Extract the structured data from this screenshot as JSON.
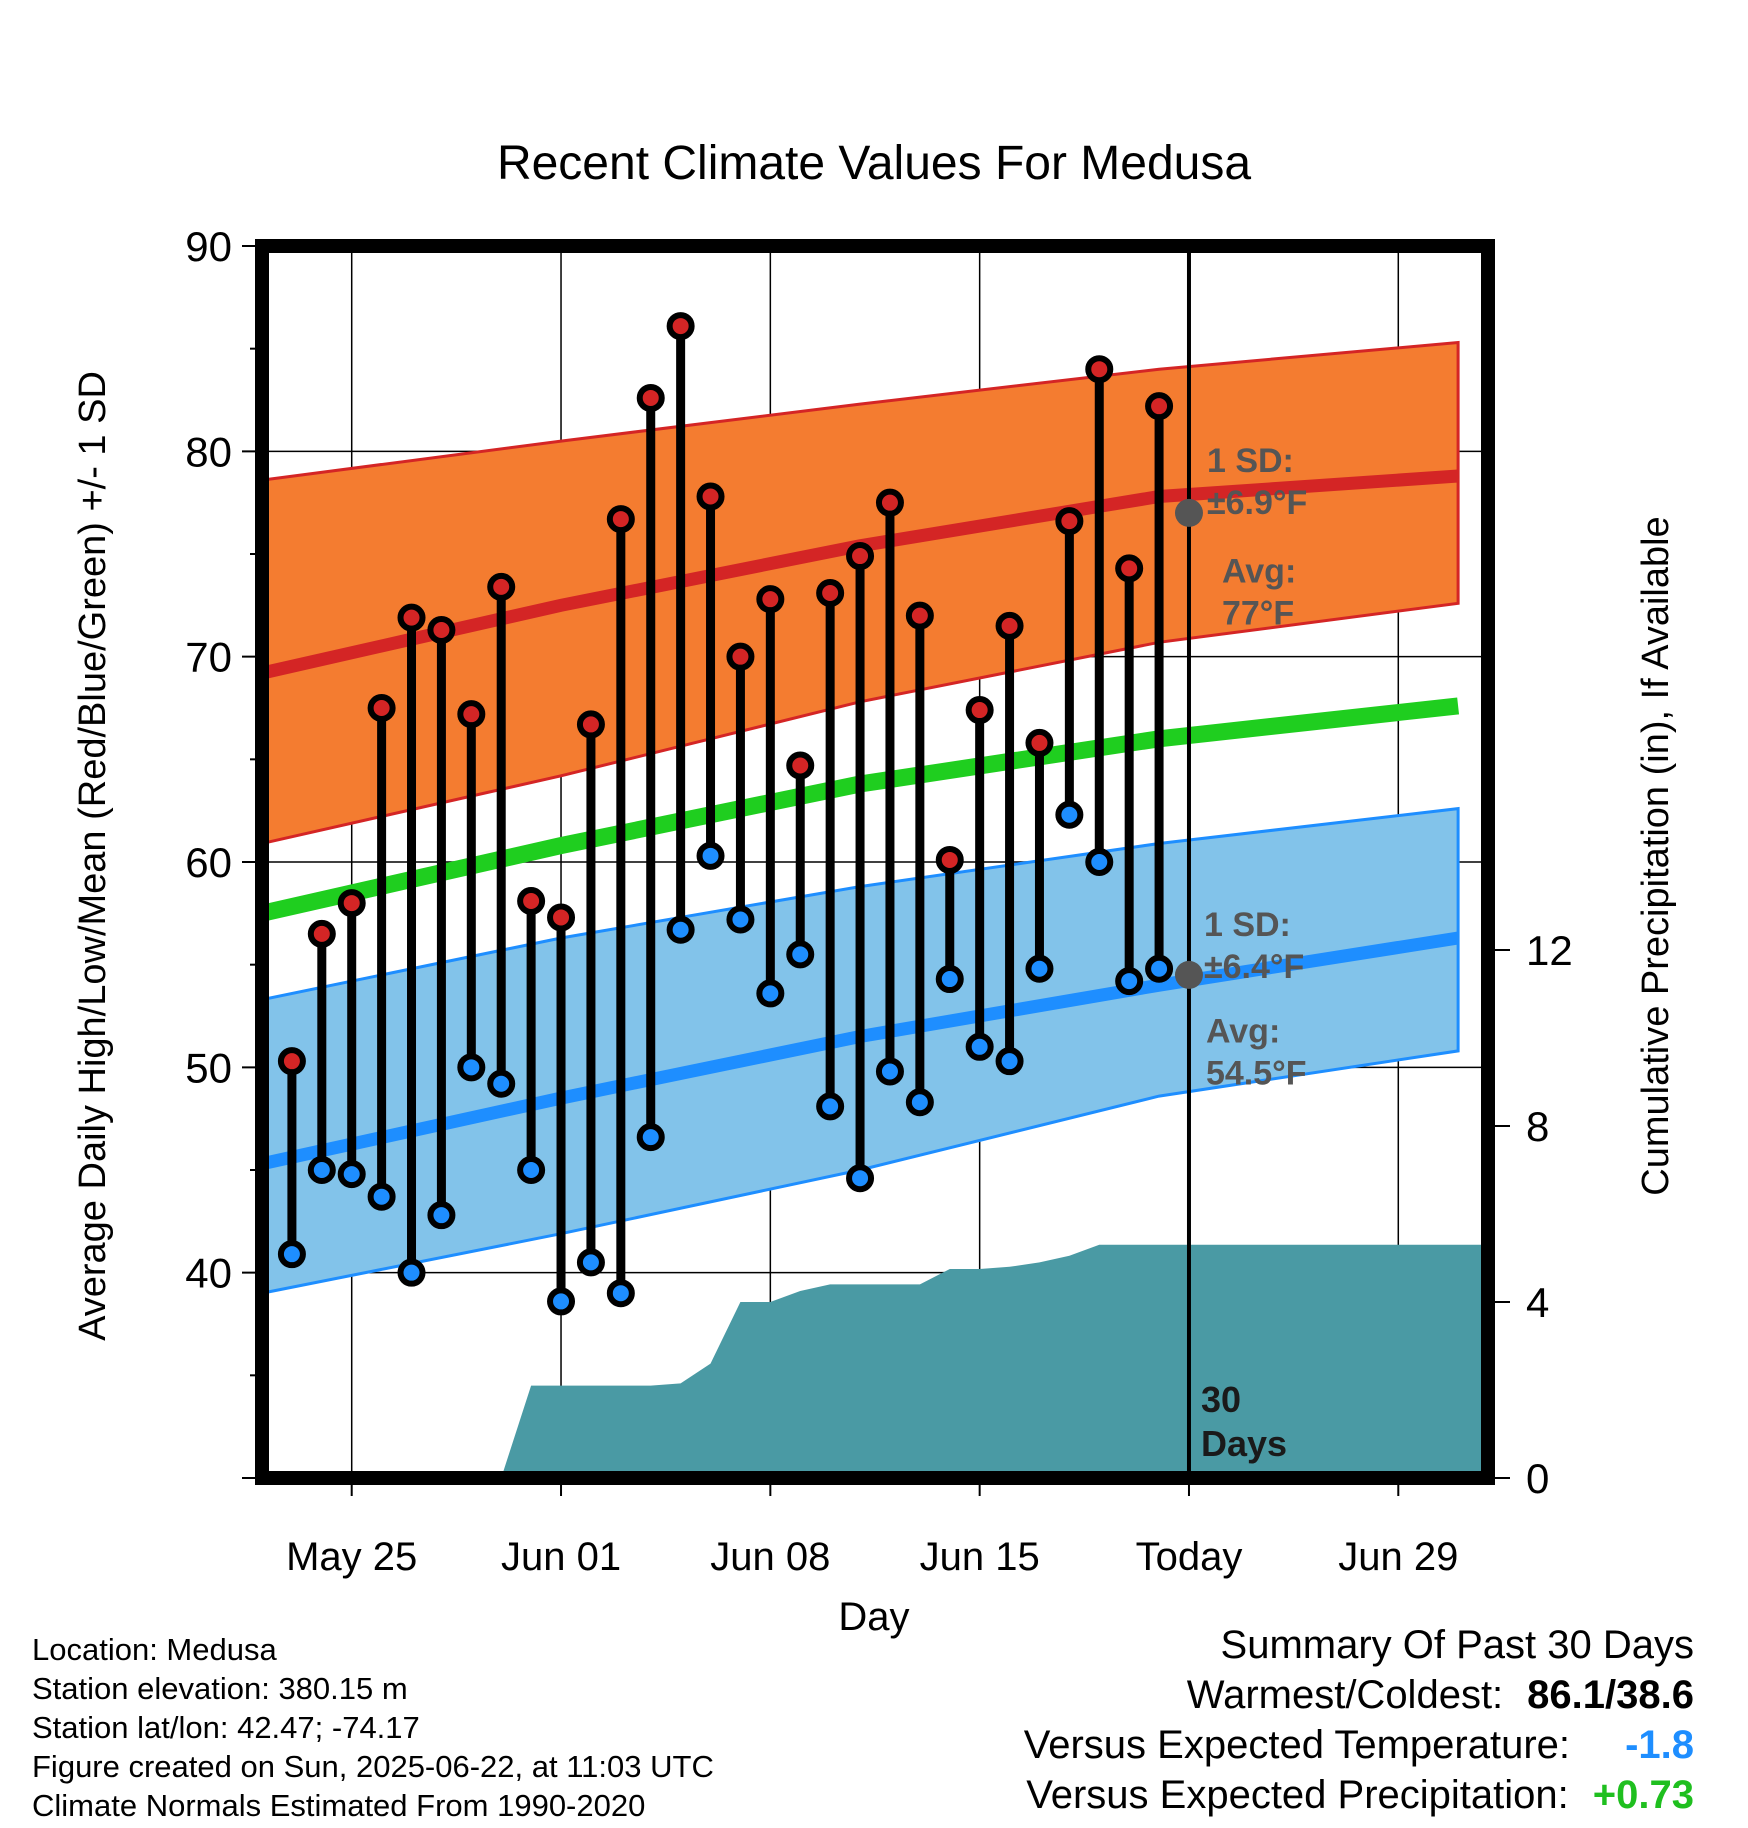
{
  "chart_data": {
    "type": "line",
    "title": "Recent Climate Values For Medusa",
    "xlabel": "Day",
    "ylabel": "Average Daily High/Low/Mean (Red/Blue/Green) +/- 1 SD",
    "y2label": "Cumulative Precipitation (in), If Available",
    "ylim": [
      30,
      90
    ],
    "y2lim": [
      0,
      28
    ],
    "y_ticks": [
      40,
      50,
      60,
      70,
      80,
      90
    ],
    "y2_ticks": [
      0,
      4,
      8,
      12
    ],
    "x_range_days": [
      -29,
      12
    ],
    "x_ticks": [
      {
        "day": -26,
        "label": "May 25"
      },
      {
        "day": -19,
        "label": "Jun 01"
      },
      {
        "day": -12,
        "label": "Jun 08"
      },
      {
        "day": -5,
        "label": "Jun 15"
      },
      {
        "day": 2,
        "label": "Today"
      },
      {
        "day": 9,
        "label": "Jun 29"
      }
    ],
    "today_day": 2,
    "today_label": [
      "30",
      "Days"
    ],
    "grid": true,
    "daily": {
      "day": [
        -28,
        -27,
        -26,
        -25,
        -24,
        -23,
        -22,
        -21,
        -20,
        -19,
        -18,
        -17,
        -16,
        -15,
        -14,
        -13,
        -12,
        -11,
        -10,
        -9,
        -8,
        -7,
        -6,
        -5,
        -4,
        -3,
        -2,
        -1,
        0,
        1
      ],
      "high": [
        50.3,
        56.5,
        58.0,
        67.5,
        71.9,
        71.3,
        67.2,
        73.4,
        58.1,
        57.3,
        66.7,
        76.7,
        82.6,
        86.1,
        77.8,
        70.0,
        72.8,
        64.7,
        73.1,
        74.9,
        77.5,
        72.0,
        60.1,
        67.4,
        71.5,
        65.8,
        76.6,
        84.0,
        74.3,
        82.2
      ],
      "low": [
        40.9,
        45.0,
        44.8,
        43.7,
        40.0,
        42.8,
        50.0,
        49.2,
        45.0,
        38.6,
        40.5,
        39.0,
        46.6,
        56.7,
        60.3,
        57.2,
        53.6,
        55.5,
        48.1,
        44.6,
        49.8,
        48.3,
        54.3,
        51.0,
        50.3,
        54.8,
        62.3,
        60.0,
        54.2,
        54.8
      ]
    },
    "normals": {
      "day": [
        -29,
        -19,
        -9,
        1,
        11
      ],
      "avg_high": [
        69.2,
        72.5,
        75.4,
        77.8,
        78.8
      ],
      "high_upper": [
        78.6,
        80.5,
        82.3,
        84.0,
        85.3
      ],
      "high_lower": [
        60.9,
        64.2,
        67.8,
        70.7,
        72.6
      ],
      "avg_mean": [
        57.5,
        60.8,
        63.8,
        66.0,
        67.6
      ],
      "avg_low": [
        45.3,
        48.5,
        51.5,
        54.0,
        56.3
      ],
      "low_upper": [
        53.3,
        56.3,
        58.8,
        60.9,
        62.6
      ],
      "low_lower": [
        39.0,
        41.9,
        45.0,
        48.6,
        50.8
      ]
    },
    "precip_cumulative": {
      "day": [
        -21,
        -20,
        -16,
        -15,
        -14,
        -13,
        -12,
        -11,
        -10,
        -9,
        -8,
        -7,
        -6,
        -5,
        -4,
        -3,
        -2,
        -1,
        0,
        1,
        2,
        12
      ],
      "inches": [
        0,
        2.1,
        2.1,
        2.15,
        2.6,
        4.0,
        4.0,
        4.25,
        4.4,
        4.4,
        4.4,
        4.4,
        4.75,
        4.75,
        4.8,
        4.9,
        5.05,
        5.3,
        5.3,
        5.3,
        5.3,
        5.3
      ]
    },
    "annotations": [
      {
        "name": "high-sd",
        "lines": [
          "1 SD:",
          "±6.9°F"
        ]
      },
      {
        "name": "high-avg",
        "lines": [
          "Avg:",
          "77°F"
        ],
        "value": 77
      },
      {
        "name": "low-sd",
        "lines": [
          "1 SD:",
          "±6.4°F"
        ]
      },
      {
        "name": "low-avg",
        "lines": [
          "Avg:",
          "54.5°F"
        ],
        "value": 54.5
      }
    ],
    "colors": {
      "high_band": "#f47c30",
      "high_line": "#d42525",
      "mean_line": "#1fce1f",
      "low_band": "#82c3ea",
      "low_line": "#1e8eff",
      "precip": "#4a9aa4",
      "high_marker": "#d42525",
      "low_marker": "#1e8eff",
      "annotation": "#555555"
    }
  },
  "footer": {
    "location": "Location: Medusa",
    "elevation": "Station elevation: 380.15 m",
    "latlon": "Station lat/lon: 42.47; -74.17",
    "created": "Figure created on Sun, 2025-06-22, at 11:03 UTC",
    "normals": "Climate Normals Estimated From 1990-2020"
  },
  "summary": {
    "title": "Summary Of Past 30 Days",
    "warmest_label": "Warmest/Coldest:",
    "warmest_value": "86.1/38.6",
    "temp_label": "Versus Expected Temperature:",
    "temp_value": "-1.8",
    "temp_color": "#1e8eff",
    "precip_label": "Versus Expected Precipitation:",
    "precip_value": "+0.73",
    "precip_color": "#1fbf1f"
  }
}
